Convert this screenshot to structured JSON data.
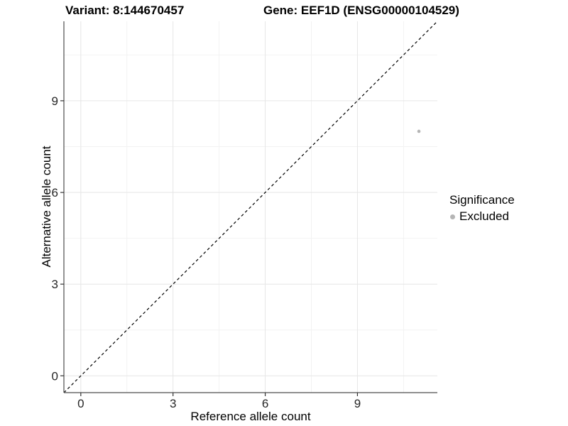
{
  "header": {
    "title_left": "Variant: 8:144670457",
    "title_right": "Gene: EEF1D (ENSG00000104529)"
  },
  "chart_data": {
    "type": "scatter",
    "xlabel": "Reference allele count",
    "ylabel": "Alternative allele count",
    "x_ticks": [
      0,
      3,
      6,
      9
    ],
    "y_ticks": [
      0,
      3,
      6,
      9
    ],
    "x_minor_ticks": [
      1.5,
      4.5,
      7.5,
      10.5
    ],
    "y_minor_ticks": [
      1.5,
      4.5,
      7.5,
      10.5
    ],
    "xlim": [
      -0.55,
      11.6
    ],
    "ylim": [
      -0.55,
      11.6
    ],
    "grid": "major and minor gridlines, white panel background",
    "legend_position": "right",
    "series": [
      {
        "name": "Excluded",
        "points": [
          {
            "x": 11,
            "y": 8
          }
        ],
        "point_radius": 2.3
      }
    ],
    "reference_line": {
      "kind": "identity y=x",
      "style": "dashed",
      "from": [
        -0.55,
        -0.55
      ],
      "to": [
        11.6,
        11.6
      ]
    }
  },
  "legend": {
    "title": "Significance",
    "items": [
      {
        "label": "Excluded",
        "color": "#b5b5b5"
      }
    ]
  },
  "colors": {
    "background": "#ffffff",
    "grid_major": "#e6e6e6",
    "grid_minor": "#f2f2f2",
    "axis_line": "#4d4d4d",
    "tick_mark": "#333333",
    "tick_label": "#262626",
    "title": "#000000",
    "point_excluded": "#b5b5b5",
    "reference_line": "#000000"
  }
}
